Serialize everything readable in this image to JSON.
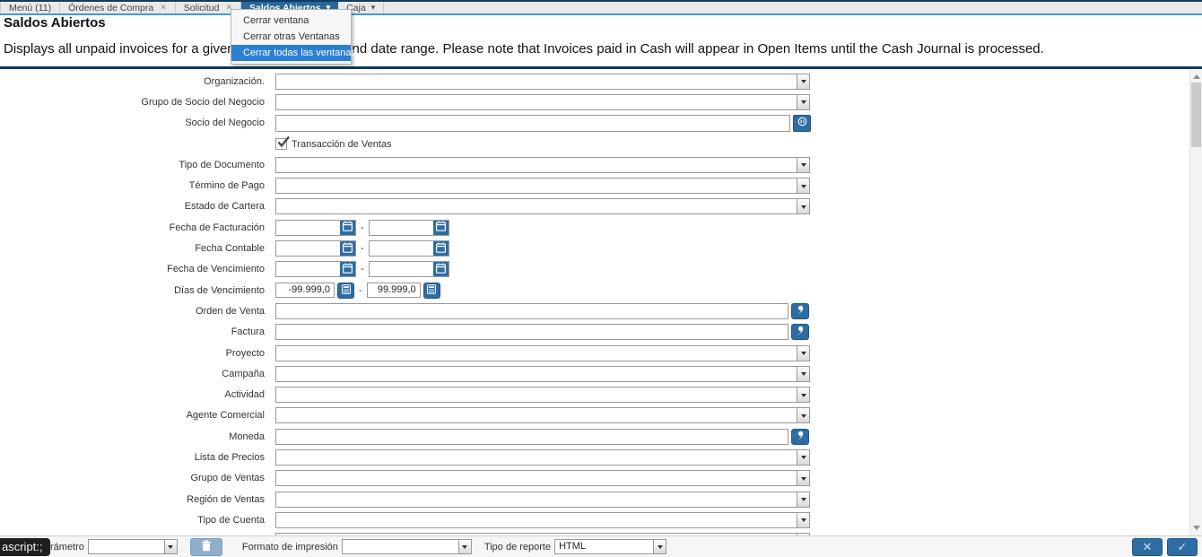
{
  "colors": {
    "accent_blue": "#2e6da4",
    "selected_tab_blue": "#27679c",
    "menu_highlight_blue": "#2b7fd4",
    "divider_navy": "#0e3a5c",
    "tabbar_underline_blue": "#3f9bdc"
  },
  "tabbar": {
    "tabs": [
      {
        "id": "menu",
        "label": "Menú (11)",
        "closable": false,
        "chevron": false,
        "selected": false
      },
      {
        "id": "ordenes-compra",
        "label": "Órdenes de Compra",
        "closable": true,
        "chevron": false,
        "selected": false
      },
      {
        "id": "solicitud",
        "label": "Solicitud",
        "closable": true,
        "chevron": false,
        "selected": false
      },
      {
        "id": "saldos-abiertos",
        "label": "Saldos Abiertos",
        "closable": false,
        "chevron": true,
        "selected": true
      },
      {
        "id": "caja",
        "label": "Caja",
        "closable": false,
        "chevron": true,
        "selected": false
      }
    ]
  },
  "context_menu": {
    "items": [
      {
        "id": "cerrar-ventana",
        "label": "Cerrar ventana",
        "highlighted": false
      },
      {
        "id": "cerrar-otras-ventanas",
        "label": "Cerrar otras Ventanas",
        "highlighted": false
      },
      {
        "id": "cerrar-todas-las-ventanas",
        "label": "Cerrar todas las ventanas",
        "highlighted": true
      }
    ]
  },
  "header": {
    "title": "Saldos Abiertos",
    "description": "Displays all unpaid invoices for a given Business Partner and date range. Please note that Invoices paid in Cash will appear in Open Items until the Cash Journal is processed."
  },
  "form": {
    "range_separator": "-",
    "fields": [
      {
        "id": "organizacion",
        "label": "Organización.",
        "type": "select",
        "value": ""
      },
      {
        "id": "grupo-socio-negocio",
        "label": "Grupo de Socio del Negocio",
        "type": "select",
        "value": ""
      },
      {
        "id": "socio-negocio",
        "label": "Socio del Negocio",
        "type": "search-bpartner",
        "value": ""
      },
      {
        "id": "transaccion-ventas",
        "label": "Transacción de Ventas",
        "type": "checkbox",
        "checked": true
      },
      {
        "id": "tipo-documento",
        "label": "Tipo de Documento",
        "type": "select",
        "value": ""
      },
      {
        "id": "termino-pago",
        "label": "Término de Pago",
        "type": "select",
        "value": ""
      },
      {
        "id": "estado-cartera",
        "label": "Estado de Cartera",
        "type": "select",
        "value": ""
      },
      {
        "id": "fecha-facturacion",
        "label": "Fecha de Facturación",
        "type": "daterange",
        "from": "",
        "to": ""
      },
      {
        "id": "fecha-contable",
        "label": "Fecha Contable",
        "type": "daterange",
        "from": "",
        "to": ""
      },
      {
        "id": "fecha-vencimiento",
        "label": "Fecha de Vencimiento",
        "type": "daterange",
        "from": "",
        "to": ""
      },
      {
        "id": "dias-vencimiento",
        "label": "Días de Vencimiento",
        "type": "numberrange",
        "from": "-99.999,0",
        "to": "99.999,0"
      },
      {
        "id": "orden-venta",
        "label": "Orden de Venta",
        "type": "search",
        "value": ""
      },
      {
        "id": "factura",
        "label": "Factura",
        "type": "search",
        "value": ""
      },
      {
        "id": "proyecto",
        "label": "Proyecto",
        "type": "select",
        "value": ""
      },
      {
        "id": "campana",
        "label": "Campaña",
        "type": "select",
        "value": ""
      },
      {
        "id": "actividad",
        "label": "Actividad",
        "type": "select",
        "value": ""
      },
      {
        "id": "agente-comercial",
        "label": "Agente Comercial",
        "type": "select",
        "value": ""
      },
      {
        "id": "moneda",
        "label": "Moneda",
        "type": "search",
        "value": ""
      },
      {
        "id": "lista-precios",
        "label": "Lista de Precios",
        "type": "select",
        "value": ""
      },
      {
        "id": "grupo-ventas",
        "label": "Grupo de Ventas",
        "type": "select",
        "value": ""
      },
      {
        "id": "region-ventas",
        "label": "Región de Ventas",
        "type": "select",
        "value": ""
      },
      {
        "id": "tipo-cuenta",
        "label": "Tipo de Cuenta",
        "type": "select",
        "value": ""
      },
      {
        "id": "partial-row",
        "label": "",
        "type": "select",
        "value": ""
      }
    ]
  },
  "footer": {
    "tooltip": "ascript:;",
    "parameter_label": "rámetro",
    "parameter_value": "",
    "print_format_label": "Formato de impresión",
    "print_format_value": "",
    "report_type_label": "Tipo de reporte",
    "report_type_value": "HTML"
  }
}
